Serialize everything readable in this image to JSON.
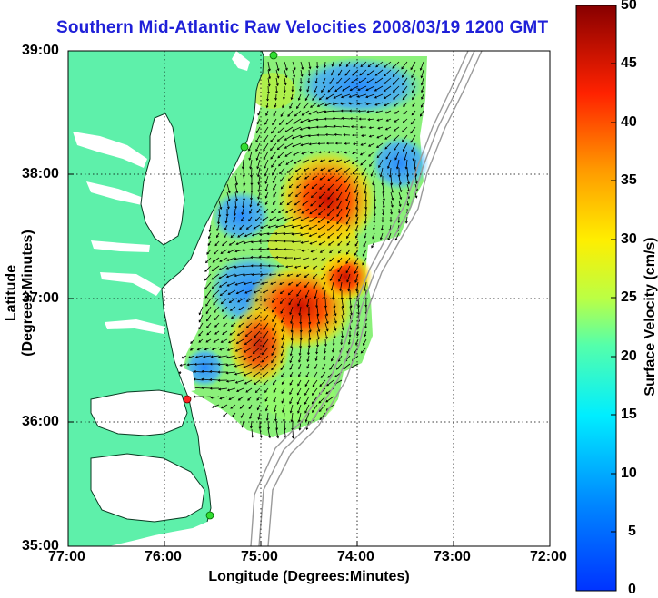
{
  "title": "Southern Mid-Atlantic Raw Velocities 2008/03/19 1200 GMT",
  "x_axis": {
    "label": "Longitude (Degrees:Minutes)",
    "ticks": [
      "77:00",
      "76:00",
      "75:00",
      "74:00",
      "73:00",
      "72:00"
    ]
  },
  "y_axis": {
    "label": "Latitude (Degrees:Minutes)",
    "ticks": [
      "39:00",
      "38:00",
      "37:00",
      "36:00",
      "35:00"
    ]
  },
  "colorbar": {
    "label": "Surface Velocity (cm/s)",
    "ticks": [
      "50",
      "45",
      "40",
      "35",
      "30",
      "25",
      "20",
      "15",
      "10",
      "5",
      "0"
    ]
  },
  "chart_data": {
    "type": "heatmap",
    "title": "Southern Mid-Atlantic Raw Velocities 2008/03/19 1200 GMT",
    "xlabel": "Longitude (Degrees:Minutes)",
    "ylabel": "Latitude (Degrees:Minutes)",
    "xlim": [
      -77,
      -72
    ],
    "ylim": [
      35,
      39
    ],
    "colorbar_range": [
      0,
      50
    ],
    "colorbar_units": "cm/s",
    "stations": [
      {
        "lon": -74.86,
        "lat": 39.0,
        "color": "green"
      },
      {
        "lon": -75.16,
        "lat": 38.22,
        "color": "green"
      },
      {
        "lon": -75.72,
        "lat": 36.18,
        "color": "red"
      },
      {
        "lon": -75.5,
        "lat": 35.26,
        "color": "green"
      }
    ],
    "high_velocity_regions": [
      {
        "lon": -74.3,
        "lat": 37.7,
        "speed": 42
      },
      {
        "lon": -74.9,
        "lat": 36.9,
        "speed": 48
      },
      {
        "lon": -74.0,
        "lat": 37.2,
        "speed": 44
      }
    ]
  }
}
